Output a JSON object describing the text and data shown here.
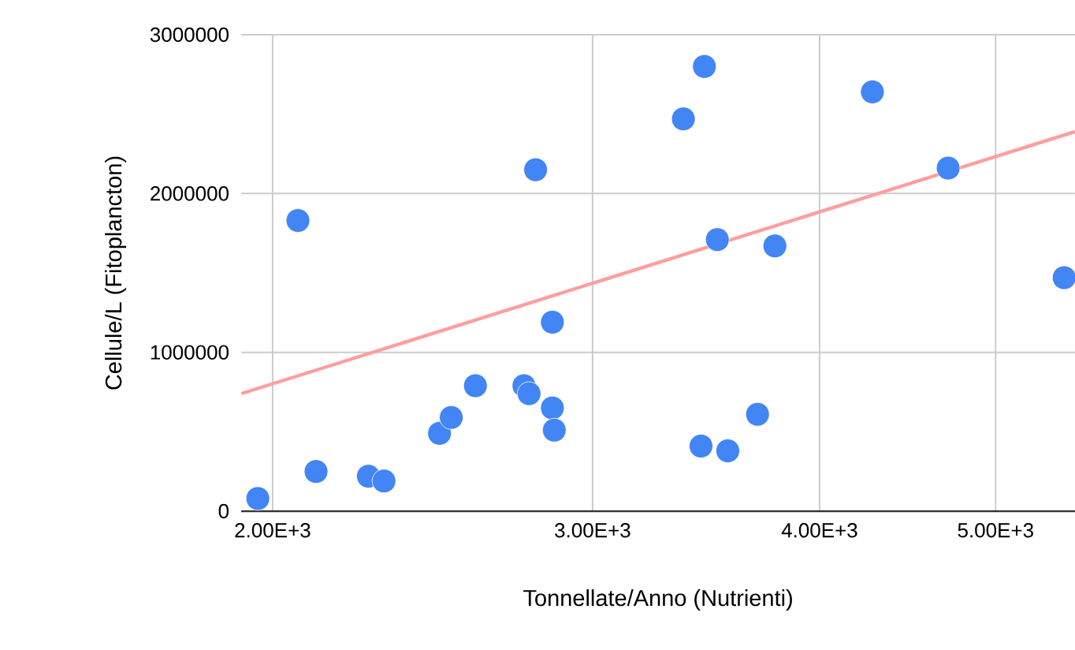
{
  "chart_data": {
    "type": "scatter",
    "xlabel": "Tonnellate/Anno (Nutrienti)",
    "ylabel": "Cellule/L (Fitoplancton)",
    "log": "x",
    "grid": true,
    "xlim": [
      1922,
      5530
    ],
    "ylim": [
      0,
      3000000
    ],
    "xticks": [
      {
        "value": 2000,
        "label": "2.00E+3"
      },
      {
        "value": 3000,
        "label": "3.00E+3"
      },
      {
        "value": 4000,
        "label": "4.00E+3"
      },
      {
        "value": 5000,
        "label": "5.00E+3"
      }
    ],
    "yticks": [
      0,
      1000000,
      2000000,
      3000000
    ],
    "series": [
      {
        "marker": "circle",
        "color": "#4285f4",
        "x": [
          1963,
          2065,
          2113,
          2258,
          2303,
          2471,
          2508,
          2586,
          2750,
          2768,
          2791,
          2851,
          2851,
          2858,
          3366,
          3457,
          3442,
          3514,
          3561,
          3698,
          3780,
          4277,
          4708,
          5454
        ],
        "values": [
          80000,
          1830000,
          250000,
          220000,
          190000,
          490000,
          590000,
          790000,
          790000,
          740000,
          2150000,
          1190000,
          650000,
          510000,
          2470000,
          2800000,
          410000,
          1710000,
          380000,
          610000,
          1670000,
          2640000,
          2160000,
          1470000
        ]
      },
      {
        "type": "line",
        "marker": "none",
        "color": "#ff9e9e",
        "x": [
          1922,
          5530
        ],
        "values": [
          740000,
          2390000
        ]
      }
    ]
  }
}
